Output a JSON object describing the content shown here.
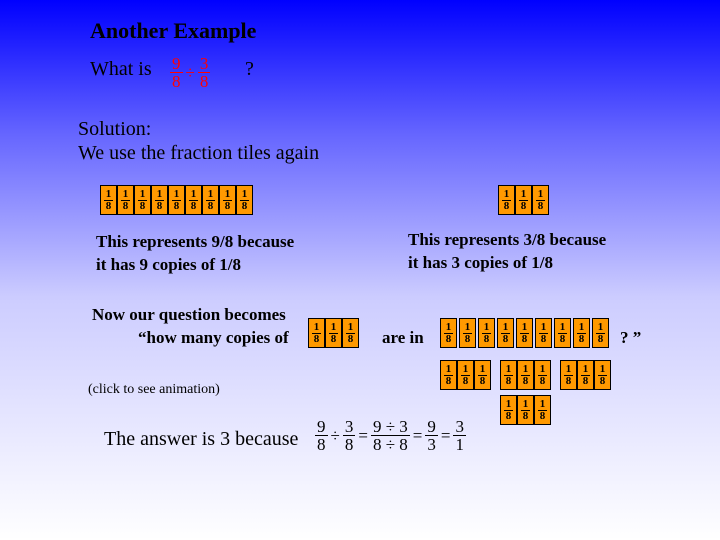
{
  "title": "Another Example",
  "q1": "What is",
  "q2": "?",
  "sol1": "Solution:",
  "sol2": "We use the fraction tiles again",
  "rep9a": "This represents 9/8 because",
  "rep9b": "it has 9 copies of 1/8",
  "rep3a": "This represents 3/8 because",
  "rep3b": "it has 3 copies of 1/8",
  "now1": "Now our question becomes",
  "now2": "“how many copies of",
  "arein": "are in",
  "qmark": "? ”",
  "click": "(click to see animation)",
  "ans": "The answer is 3 because",
  "tile_bg": "#ff9900",
  "accent": "#ff0000",
  "frac98": {
    "n": "9",
    "d": "8"
  },
  "frac38": {
    "n": "3",
    "d": "8"
  },
  "frac93": {
    "n": "9",
    "d": "3"
  },
  "frac31": {
    "n": "3",
    "d": "1"
  }
}
